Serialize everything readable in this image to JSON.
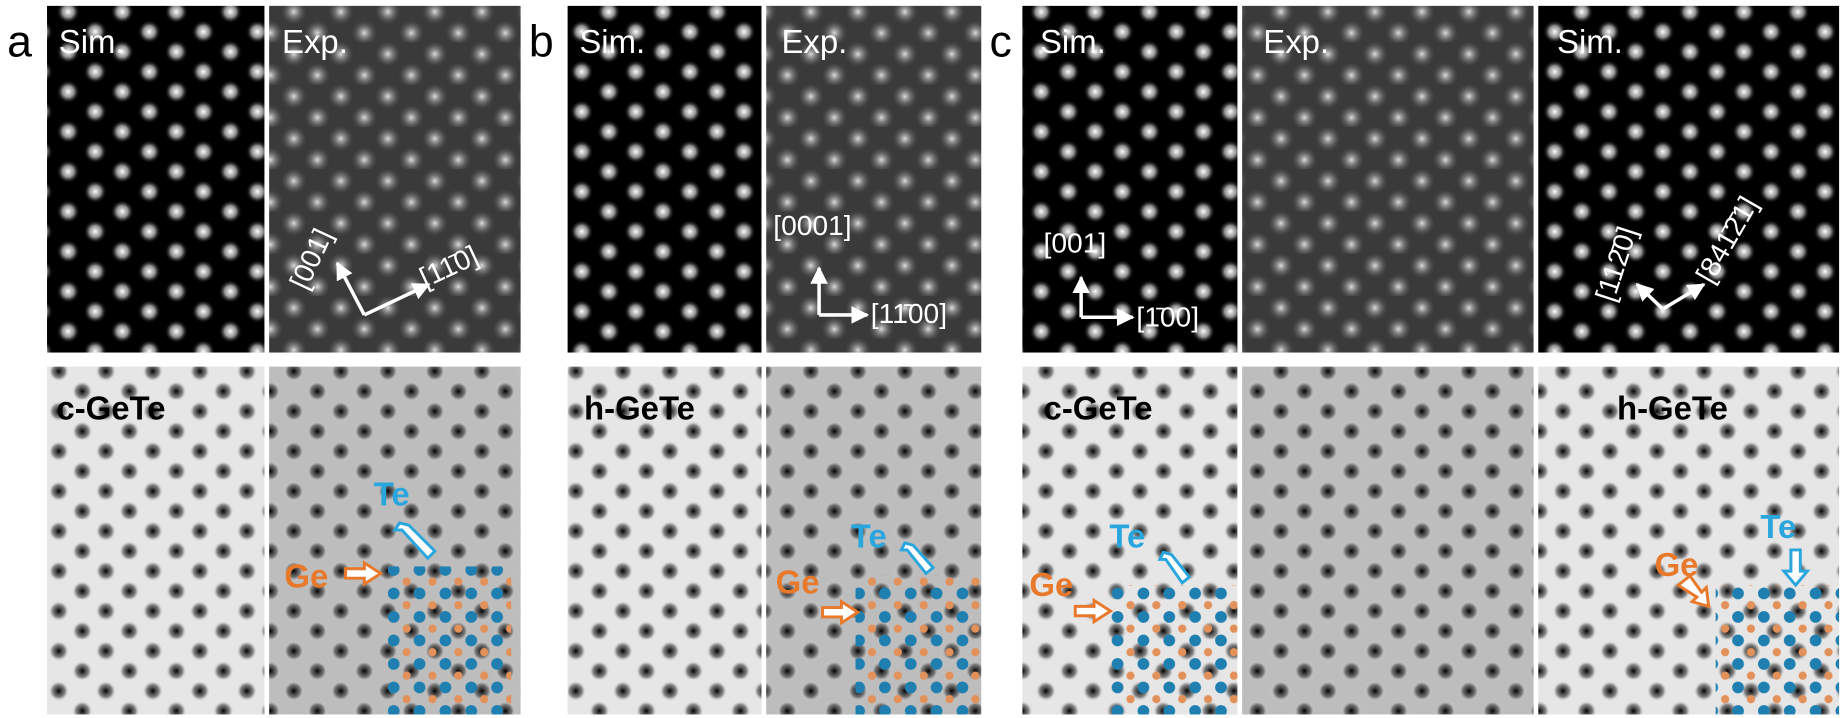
{
  "panels": [
    {
      "label": "a",
      "captions": [
        "Sim.",
        "Exp."
      ],
      "directions": [
        "[001]",
        "[11̄0]"
      ],
      "phase": "c-GeTe",
      "atoms": [
        "Ge",
        "Te"
      ]
    },
    {
      "label": "b",
      "captions": [
        "Sim.",
        "Exp."
      ],
      "directions": [
        "[0001]",
        "[11̄00]"
      ],
      "phase": "h-GeTe",
      "atoms": [
        "Ge",
        "Te"
      ]
    },
    {
      "label": "c",
      "captions": [
        "Sim.",
        "Exp.",
        "Sim."
      ],
      "directions": [
        "[001]",
        "[1̄00]",
        "[112̄0]",
        "[841̄2̄1]"
      ],
      "phases": [
        "c-GeTe",
        "h-GeTe"
      ],
      "atoms": [
        "Ge",
        "Te",
        "Ge",
        "Te"
      ]
    }
  ]
}
